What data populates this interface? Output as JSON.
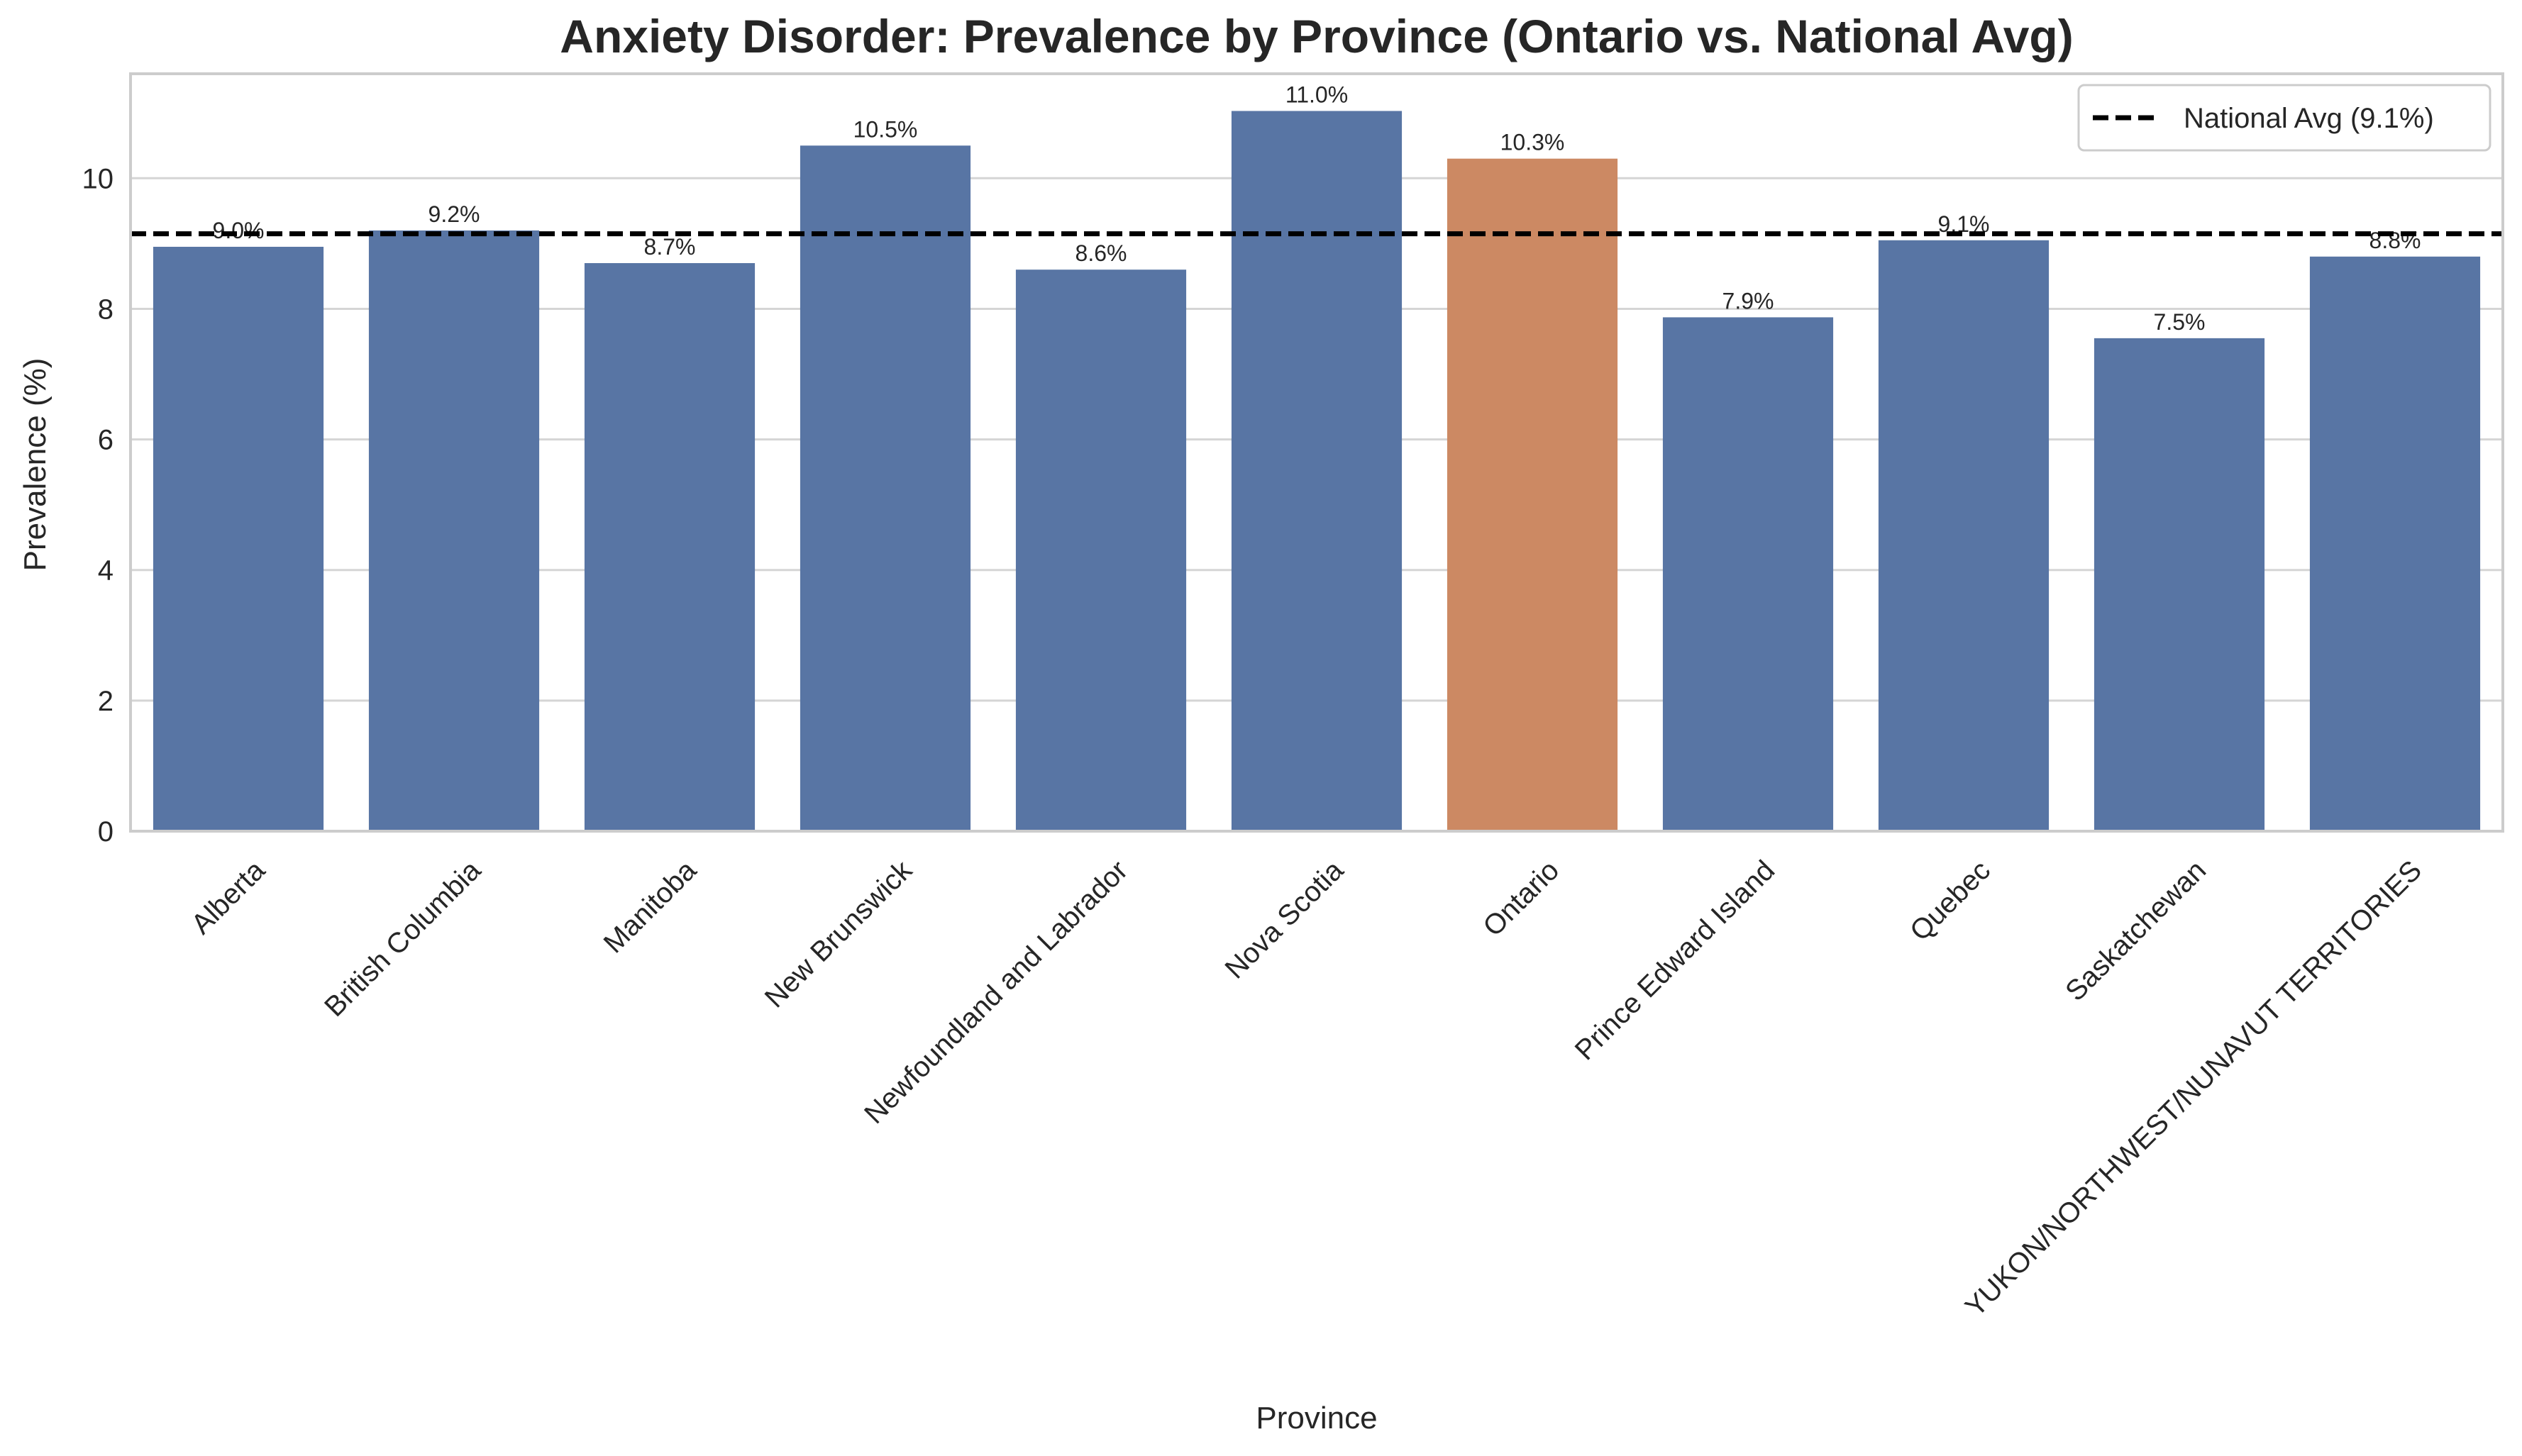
{
  "chart_data": {
    "type": "bar",
    "title": "Anxiety Disorder: Prevalence by Province (Ontario vs. National Avg)",
    "xlabel": "Province",
    "ylabel": "Prevalence (%)",
    "ylim": [
      0,
      11.6
    ],
    "yticks": [
      0,
      2,
      4,
      6,
      8,
      10
    ],
    "grid": true,
    "categories": [
      "Alberta",
      "British Columbia",
      "Manitoba",
      "New Brunswick",
      "Newfoundland and Labrador",
      "Nova Scotia",
      "Ontario",
      "Prince Edward Island",
      "Quebec",
      "Saskatchewan",
      "YUKON/NORTHWEST/NUNAVUT TERRITORIES"
    ],
    "values": [
      8.95,
      9.2,
      8.7,
      10.5,
      8.6,
      11.03,
      10.3,
      7.87,
      9.05,
      7.55,
      8.8
    ],
    "bar_labels": [
      "9.0%",
      "9.2%",
      "8.7%",
      "10.5%",
      "8.6%",
      "11.0%",
      "10.3%",
      "7.9%",
      "9.1%",
      "7.5%",
      "8.8%"
    ],
    "highlight_category": "Ontario",
    "colors": {
      "default": "#5875a4",
      "highlight": "#cc8963",
      "reference_line": "#000000"
    },
    "reference_line": {
      "value": 9.15,
      "label": "National Avg (9.1%)",
      "style": "dashed"
    },
    "legend": {
      "placement": "top-right"
    }
  }
}
